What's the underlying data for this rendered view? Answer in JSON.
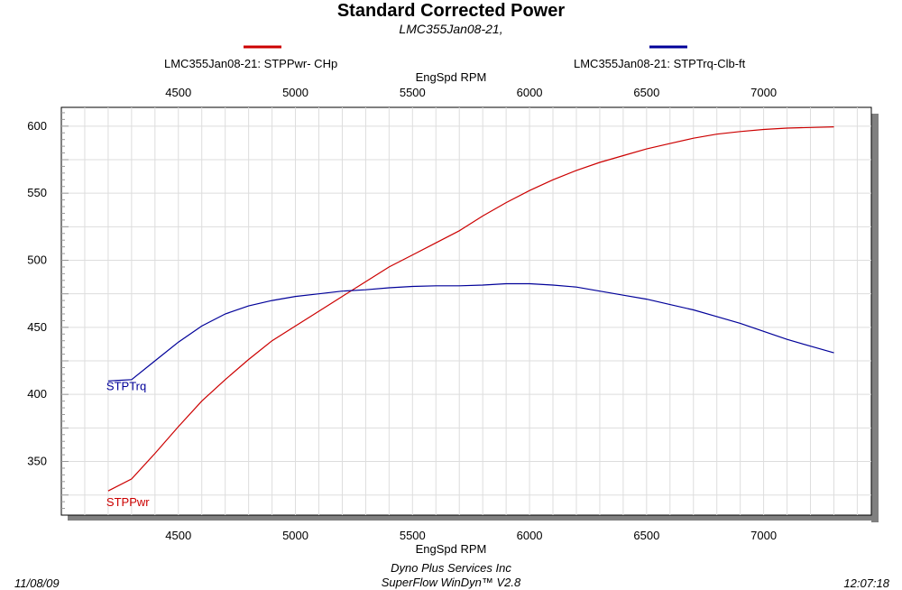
{
  "chart_data": {
    "type": "line",
    "title": "Standard Corrected Power",
    "subtitle": "LMC355Jan08-21,",
    "xlabel": "EngSpd  RPM",
    "x_ticks": [
      4500,
      5000,
      5500,
      6000,
      6500,
      7000
    ],
    "xlim": [
      4000,
      7460
    ],
    "y_ticks": [
      350,
      400,
      450,
      500,
      550,
      600
    ],
    "ylim": [
      310,
      614
    ],
    "grid": true,
    "legend_position": "top",
    "series": [
      {
        "name": "LMC355Jan08-21: STPPwr- CHp",
        "label": "STPPwr",
        "color": "#cc0000",
        "x": [
          4200,
          4300,
          4400,
          4500,
          4600,
          4700,
          4800,
          4900,
          5000,
          5100,
          5200,
          5300,
          5400,
          5500,
          5600,
          5700,
          5800,
          5900,
          6000,
          6100,
          6200,
          6300,
          6400,
          6500,
          6600,
          6700,
          6800,
          6900,
          7000,
          7100,
          7200,
          7300
        ],
        "values": [
          328,
          337,
          356,
          376,
          395,
          411,
          426,
          440,
          451,
          462,
          473,
          484,
          495,
          504,
          513,
          522,
          533,
          543,
          552,
          560,
          567,
          573,
          578,
          583,
          587,
          591,
          594,
          596,
          597.5,
          598.5,
          599,
          599.5
        ]
      },
      {
        "name": "LMC355Jan08-21: STPTrq-Clb-ft",
        "label": "STPTrq",
        "color": "#000099",
        "x": [
          4200,
          4300,
          4400,
          4500,
          4600,
          4700,
          4800,
          4900,
          5000,
          5100,
          5200,
          5300,
          5400,
          5500,
          5600,
          5700,
          5800,
          5900,
          6000,
          6100,
          6200,
          6300,
          6400,
          6500,
          6600,
          6700,
          6800,
          6900,
          7000,
          7100,
          7200,
          7300
        ],
        "values": [
          410,
          411,
          425,
          439,
          451,
          460,
          466,
          470,
          473,
          475,
          477,
          478,
          479.5,
          480.5,
          481,
          481,
          481.5,
          482.5,
          482.5,
          481.5,
          480,
          477,
          474,
          471,
          467,
          463,
          458,
          453,
          447,
          441,
          436,
          431
        ]
      }
    ]
  },
  "footer": {
    "date": "11/08/09",
    "time": "12:07:18",
    "company": "Dyno Plus Services Inc",
    "software": "SuperFlow WinDyn™ V2.8"
  }
}
